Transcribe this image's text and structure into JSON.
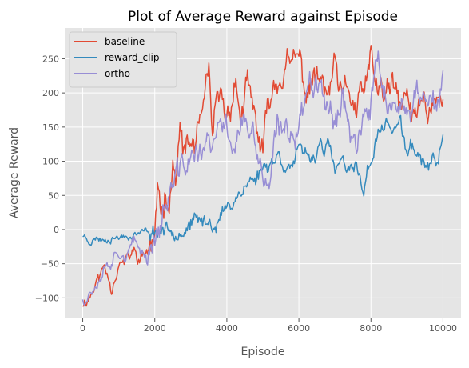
{
  "chart_data": {
    "type": "line",
    "title": "Plot of Average Reward against Episode",
    "xlabel": "Episode",
    "ylabel": "Average Reward",
    "xlim": [
      -500,
      10500
    ],
    "ylim": [
      -130,
      295
    ],
    "xticks": [
      0,
      2000,
      4000,
      6000,
      8000,
      10000
    ],
    "yticks": [
      -100,
      -50,
      0,
      50,
      100,
      150,
      200,
      250
    ],
    "grid": true,
    "legend_position": "top-left",
    "series": [
      {
        "name": "baseline",
        "color": "#E24A33",
        "x": [
          0,
          200,
          400,
          600,
          800,
          1000,
          1200,
          1400,
          1600,
          1800,
          2000,
          2100,
          2200,
          2300,
          2400,
          2500,
          2600,
          2700,
          2800,
          3000,
          3200,
          3400,
          3500,
          3600,
          3800,
          4000,
          4200,
          4400,
          4600,
          4800,
          5000,
          5200,
          5400,
          5600,
          5800,
          6000,
          6200,
          6400,
          6600,
          6800,
          7000,
          7200,
          7400,
          7600,
          7800,
          8000,
          8200,
          8400,
          8600,
          8800,
          9000,
          9200,
          9400,
          9600,
          9800,
          10000
        ],
        "y": [
          -108,
          -95,
          -75,
          -55,
          -80,
          -45,
          -50,
          -35,
          -45,
          -30,
          -20,
          40,
          30,
          65,
          55,
          95,
          80,
          140,
          110,
          120,
          135,
          170,
          215,
          130,
          190,
          160,
          220,
          170,
          200,
          150,
          110,
          190,
          220,
          240,
          230,
          250,
          200,
          225,
          210,
          195,
          230,
          180,
          205,
          170,
          195,
          240,
          205,
          190,
          210,
          170,
          195,
          150,
          200,
          175,
          205,
          185
        ],
        "noise": 45,
        "seed": 11
      },
      {
        "name": "reward_clip",
        "color": "#348ABD",
        "x": [
          0,
          200,
          400,
          600,
          800,
          1000,
          1200,
          1400,
          1600,
          1800,
          2000,
          2400,
          2800,
          3200,
          3600,
          3800,
          4000,
          4200,
          4400,
          4600,
          4800,
          5000,
          5200,
          5400,
          5600,
          5800,
          6000,
          6200,
          6400,
          6600,
          6800,
          7000,
          7200,
          7400,
          7600,
          7800,
          8000,
          8200,
          8400,
          8600,
          8800,
          9000,
          9200,
          9400,
          9600,
          9800,
          10000
        ],
        "y": [
          -8,
          -15,
          -12,
          -14,
          -10,
          -10,
          -8,
          -6,
          -4,
          -2,
          0,
          2,
          5,
          8,
          12,
          18,
          30,
          45,
          60,
          70,
          75,
          90,
          100,
          110,
          100,
          95,
          110,
          100,
          105,
          130,
          120,
          85,
          100,
          75,
          90,
          60,
          105,
          140,
          155,
          150,
          155,
          110,
          120,
          100,
          90,
          95,
          130
        ],
        "noise": 22,
        "seed": 23
      },
      {
        "name": "ortho",
        "color": "#988ED5",
        "x": [
          0,
          200,
          400,
          600,
          800,
          1000,
          1200,
          1400,
          1600,
          1800,
          2000,
          2200,
          2400,
          2600,
          2800,
          3000,
          3200,
          3400,
          3600,
          3800,
          4000,
          4200,
          4400,
          4600,
          4800,
          5000,
          5200,
          5400,
          5600,
          5800,
          6000,
          6200,
          6400,
          6600,
          6800,
          7000,
          7200,
          7400,
          7600,
          7800,
          8000,
          8200,
          8400,
          8600,
          8800,
          9000,
          9200,
          9400,
          9600,
          9800,
          10000
        ],
        "y": [
          -100,
          -90,
          -70,
          -50,
          -40,
          -25,
          -35,
          -25,
          -30,
          -40,
          -5,
          15,
          50,
          70,
          90,
          110,
          100,
          130,
          110,
          140,
          150,
          130,
          160,
          140,
          120,
          80,
          60,
          140,
          130,
          150,
          160,
          200,
          220,
          240,
          180,
          170,
          200,
          160,
          130,
          150,
          180,
          250,
          200,
          175,
          150,
          160,
          200,
          190,
          210,
          170,
          200
        ],
        "noise": 42,
        "seed": 37
      }
    ]
  }
}
